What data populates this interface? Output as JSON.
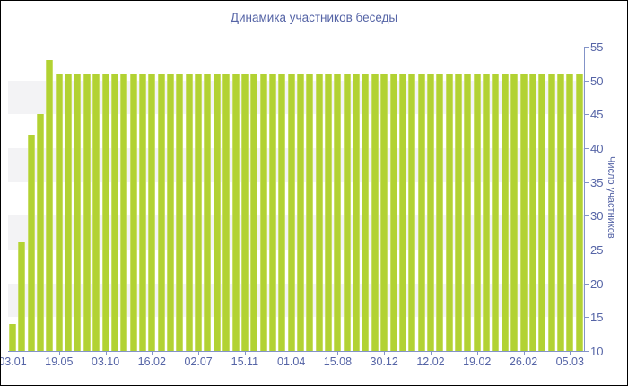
{
  "chart_data": {
    "type": "bar",
    "title": "Динамика участников беседы",
    "ylabel": "Число участников",
    "xlabel": "",
    "ylim": [
      10,
      55
    ],
    "y_ticks": [
      10,
      15,
      20,
      25,
      30,
      35,
      40,
      45,
      50,
      55
    ],
    "grid_bands": [
      [
        15,
        20
      ],
      [
        25,
        30
      ],
      [
        35,
        40
      ],
      [
        45,
        50
      ]
    ],
    "legend": "none",
    "x_tick_labels": [
      "03.01",
      "19.05",
      "03.10",
      "16.02",
      "02.07",
      "15.11",
      "01.04",
      "15.08",
      "30.12",
      "12.02",
      "19.02",
      "26.02",
      "05.03"
    ],
    "x_label_every_n_bars": 5,
    "values": [
      14,
      26,
      42,
      45,
      53,
      51,
      51,
      51,
      51,
      51,
      51,
      51,
      51,
      51,
      51,
      51,
      51,
      51,
      51,
      51,
      51,
      51,
      51,
      51,
      51,
      51,
      51,
      51,
      51,
      51,
      51,
      51,
      51,
      51,
      51,
      51,
      51,
      51,
      51,
      51,
      51,
      51,
      51,
      51,
      51,
      51,
      51,
      51,
      51,
      51,
      51,
      51,
      51,
      51,
      51,
      51,
      51,
      51,
      51,
      51,
      51,
      51
    ],
    "colors": {
      "bar": "#b2d233",
      "bar_edge": "#c8de66",
      "text": "#5564a6",
      "axis": "#8393c8",
      "band": "#f3f3f5",
      "background": "#ffffff"
    }
  }
}
